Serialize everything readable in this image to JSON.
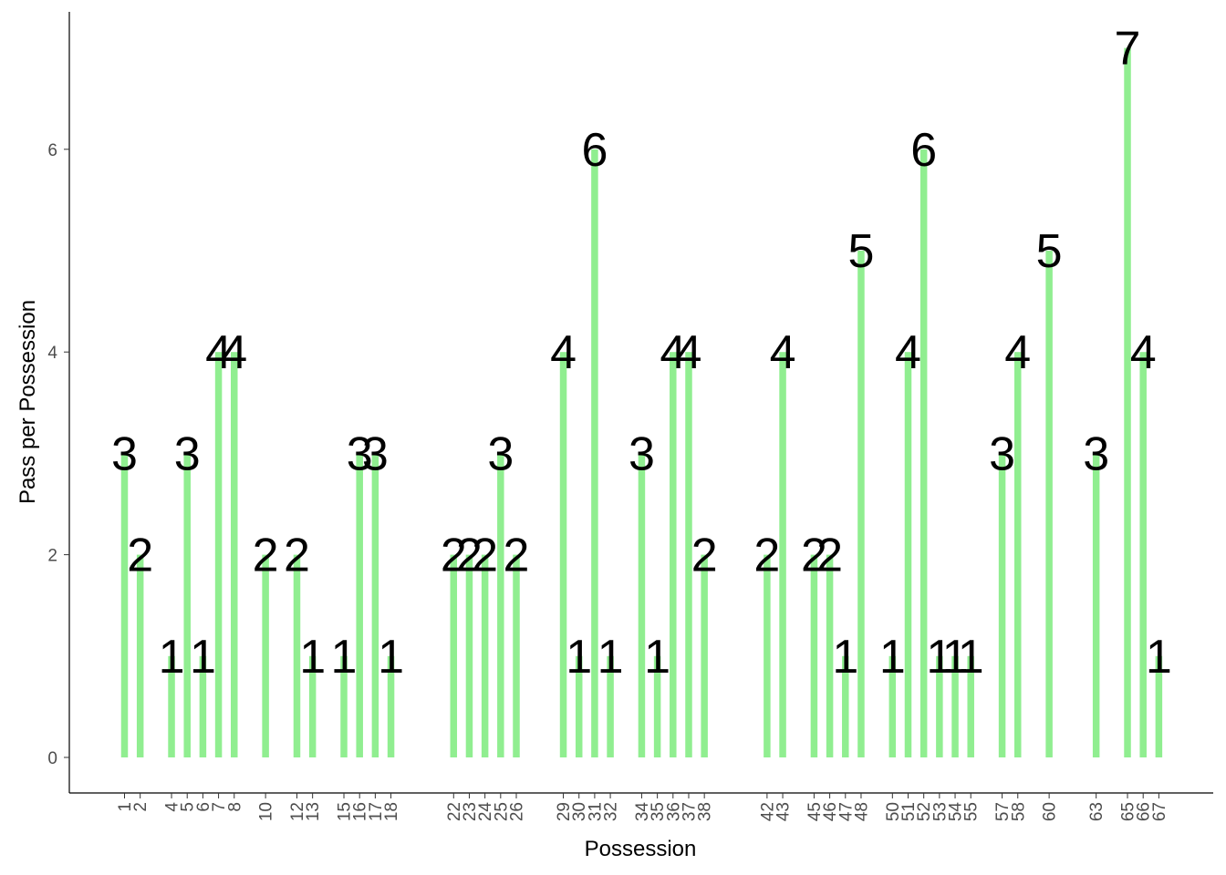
{
  "chart_data": {
    "type": "bar",
    "xlabel": "Possession",
    "ylabel": "Pass per Possession",
    "ylim": [
      0,
      7
    ],
    "y_ticks": [
      0,
      2,
      4,
      6
    ],
    "grid": false,
    "bar_color": "#90ee90",
    "categories": [
      "1",
      "2",
      "4",
      "5",
      "6",
      "7",
      "8",
      "10",
      "12",
      "13",
      "15",
      "16",
      "17",
      "18",
      "22",
      "23",
      "24",
      "25",
      "26",
      "29",
      "30",
      "31",
      "32",
      "34",
      "35",
      "36",
      "37",
      "38",
      "42",
      "43",
      "45",
      "46",
      "47",
      "48",
      "50",
      "51",
      "52",
      "53",
      "54",
      "55",
      "57",
      "58",
      "60",
      "63",
      "65",
      "66",
      "67"
    ],
    "values": [
      3,
      2,
      1,
      3,
      1,
      4,
      4,
      2,
      2,
      1,
      1,
      3,
      3,
      1,
      2,
      2,
      2,
      3,
      2,
      4,
      1,
      6,
      1,
      3,
      1,
      4,
      4,
      2,
      2,
      4,
      2,
      2,
      1,
      5,
      1,
      4,
      6,
      1,
      1,
      1,
      3,
      4,
      5,
      3,
      7,
      4,
      1
    ]
  }
}
